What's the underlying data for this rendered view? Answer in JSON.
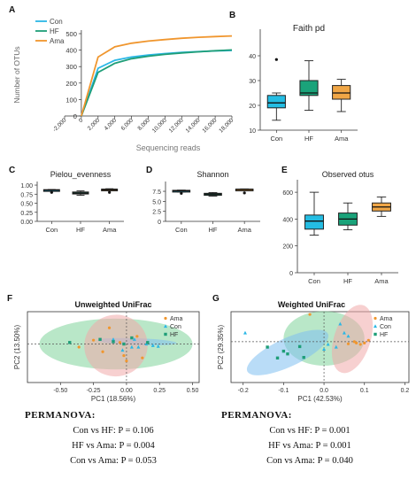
{
  "colors": {
    "con": "#2ab7e6",
    "hf": "#1f9e78",
    "ama": "#f0962e",
    "box_con": "#24bde3",
    "box_hf": "#1aa37a",
    "box_ama": "#f0a646",
    "ellipse_green": "#7fd39a",
    "ellipse_blue": "#7fbff0",
    "ellipse_pink": "#f0a9a9"
  },
  "chart_data": [
    {
      "panel": "A",
      "type": "line",
      "title": "",
      "xlabel": "Sequencing reads",
      "ylabel": "Number of OTUs",
      "xlim": [
        -2000,
        18000
      ],
      "ylim": [
        0,
        500
      ],
      "x_ticks": [
        "-2,000",
        "0",
        "2,000",
        "4,000",
        "6,000",
        "8,000",
        "10,000",
        "12,000",
        "14,000",
        "16,000",
        "18,000"
      ],
      "y_ticks": [
        "0",
        "100",
        "200",
        "300",
        "400",
        "500"
      ],
      "legend": "top-left",
      "x": [
        0,
        2000,
        4000,
        6000,
        8000,
        10000,
        12000,
        14000,
        16000,
        18000
      ],
      "series": [
        {
          "name": "Con",
          "values": [
            0,
            290,
            338,
            358,
            370,
            379,
            386,
            391,
            395,
            398
          ]
        },
        {
          "name": "HF",
          "values": [
            0,
            265,
            320,
            348,
            363,
            374,
            383,
            390,
            396,
            401
          ]
        },
        {
          "name": "Ama",
          "values": [
            0,
            358,
            420,
            442,
            455,
            464,
            472,
            478,
            482,
            486
          ]
        }
      ]
    },
    {
      "panel": "B",
      "type": "box",
      "title": "Faith pd",
      "categories": [
        "Con",
        "HF",
        "Ama"
      ],
      "y_ticks": [
        "10",
        "20",
        "30",
        "40"
      ],
      "ylim": [
        10,
        50
      ],
      "boxes": [
        {
          "min": 14,
          "q1": 19,
          "median": 21,
          "q3": 24,
          "max": 25,
          "outliers": [
            38.5
          ]
        },
        {
          "min": 18,
          "q1": 24,
          "median": 25,
          "q3": 30,
          "max": 38,
          "outliers": []
        },
        {
          "min": 17.5,
          "q1": 22.5,
          "median": 25,
          "q3": 28,
          "max": 30.5,
          "outliers": []
        }
      ]
    },
    {
      "panel": "C",
      "type": "box",
      "title": "Pielou_evenness",
      "categories": [
        "Con",
        "HF",
        "Ama"
      ],
      "y_ticks": [
        "0.00",
        "0.25",
        "0.50",
        "0.75",
        "1.00"
      ],
      "ylim": [
        0,
        1.05
      ],
      "boxes": [
        {
          "min": 0.83,
          "q1": 0.845,
          "median": 0.86,
          "q3": 0.875,
          "max": 0.88,
          "outliers": [
            0.8
          ]
        },
        {
          "min": 0.72,
          "q1": 0.755,
          "median": 0.78,
          "q3": 0.81,
          "max": 0.84,
          "outliers": []
        },
        {
          "min": 0.85,
          "q1": 0.86,
          "median": 0.875,
          "q3": 0.89,
          "max": 0.9,
          "outliers": [
            0.8
          ]
        }
      ]
    },
    {
      "panel": "D",
      "type": "box",
      "title": "Shannon",
      "categories": [
        "Con",
        "HF",
        "Ama"
      ],
      "y_ticks": [
        "0",
        "2.5",
        "5.0",
        "7.5"
      ],
      "ylim": [
        0,
        9.5
      ],
      "boxes": [
        {
          "min": 7.3,
          "q1": 7.4,
          "median": 7.6,
          "q3": 7.75,
          "max": 7.8,
          "outliers": [
            7.0
          ]
        },
        {
          "min": 6.3,
          "q1": 6.5,
          "median": 6.8,
          "q3": 7.0,
          "max": 7.2,
          "outliers": []
        },
        {
          "min": 7.75,
          "q1": 7.85,
          "median": 7.95,
          "q3": 8.05,
          "max": 8.1,
          "outliers": [
            7.1
          ]
        }
      ]
    },
    {
      "panel": "E",
      "type": "box",
      "title": "Observed otus",
      "categories": [
        "Con",
        "HF",
        "Ama"
      ],
      "y_ticks": [
        "0",
        "200",
        "400",
        "600"
      ],
      "ylim": [
        0,
        680
      ],
      "boxes": [
        {
          "min": 280,
          "q1": 325,
          "median": 385,
          "q3": 430,
          "max": 600,
          "outliers": []
        },
        {
          "min": 320,
          "q1": 355,
          "median": 400,
          "q3": 445,
          "max": 520,
          "outliers": []
        },
        {
          "min": 420,
          "q1": 460,
          "median": 490,
          "q3": 520,
          "max": 565,
          "outliers": []
        }
      ]
    },
    {
      "panel": "F",
      "type": "scatter",
      "title": "Unweighted UniFrac",
      "xlabel": "PC1 (18.56%)",
      "ylabel": "PC2 (13.50%)",
      "xlim": [
        -0.75,
        0.55
      ],
      "ylim": [
        -0.5,
        0.42
      ],
      "x_ticks": [
        "-0.50",
        "-0.25",
        "0.00",
        "0.25",
        "0.50"
      ],
      "legend": "top-right",
      "series": [
        {
          "name": "Ama",
          "points": [
            [
              -0.13,
              0.21
            ],
            [
              -0.25,
              0.05
            ],
            [
              -0.36,
              -0.04
            ],
            [
              -0.02,
              -0.15
            ],
            [
              0.12,
              -0.18
            ],
            [
              -0.05,
              0.02
            ],
            [
              0.08,
              0.1
            ],
            [
              0.0,
              -0.22
            ],
            [
              -0.18,
              -0.1
            ]
          ]
        },
        {
          "name": "Con",
          "points": [
            [
              -0.1,
              0.06
            ],
            [
              0.06,
              0.06
            ],
            [
              0.15,
              0.0
            ],
            [
              0.2,
              -0.02
            ],
            [
              0.24,
              -0.03
            ],
            [
              0.09,
              -0.04
            ],
            [
              -0.03,
              -0.08
            ],
            [
              0.04,
              -0.04
            ]
          ]
        },
        {
          "name": "HF",
          "points": [
            [
              -0.2,
              0.06
            ],
            [
              -0.1,
              0.03
            ],
            [
              0.04,
              0.08
            ],
            [
              0.16,
              0.02
            ],
            [
              -0.43,
              0.02
            ],
            [
              -0.02,
              0.0
            ]
          ]
        }
      ],
      "ellipses": [
        {
          "group": "Con",
          "cx": -0.08,
          "cy": 0.0,
          "rx": 0.58,
          "ry": 0.33,
          "angle": 0
        },
        {
          "group": "HF",
          "cx": 0.08,
          "cy": 0.03,
          "rx": 0.3,
          "ry": 0.045,
          "angle": 2
        },
        {
          "group": "Ama",
          "cx": -0.08,
          "cy": -0.02,
          "rx": 0.24,
          "ry": 0.4,
          "angle": -12
        }
      ]
    },
    {
      "panel": "G",
      "type": "scatter",
      "title": "Weighted UniFrac",
      "xlabel": "PC1 (42.53%)",
      "ylabel": "PC2 (29.35%)",
      "xlim": [
        -0.23,
        0.21
      ],
      "ylim": [
        -0.15,
        0.11
      ],
      "x_ticks": [
        "-0.2",
        "-0.1",
        "0.0",
        "0.1",
        "0.2"
      ],
      "legend": "top-right",
      "series": [
        {
          "name": "Ama",
          "points": [
            [
              -0.035,
              0.1
            ],
            [
              0.075,
              0.0
            ],
            [
              0.08,
              -0.005
            ],
            [
              0.09,
              -0.01
            ],
            [
              0.1,
              -0.005
            ],
            [
              0.06,
              -0.008
            ],
            [
              0.11,
              0.005
            ]
          ]
        },
        {
          "name": "Con",
          "points": [
            [
              -0.195,
              0.032
            ],
            [
              0.04,
              0.065
            ],
            [
              0.05,
              0.032
            ],
            [
              0.03,
              -0.02
            ],
            [
              0.0,
              -0.028
            ],
            [
              0.06,
              0.02
            ],
            [
              0.01,
              -0.01
            ]
          ]
        },
        {
          "name": "HF",
          "points": [
            [
              -0.14,
              -0.02
            ],
            [
              -0.115,
              -0.06
            ],
            [
              -0.09,
              -0.045
            ],
            [
              -0.06,
              -0.018
            ],
            [
              -0.05,
              -0.058
            ],
            [
              -0.1,
              -0.035
            ]
          ]
        }
      ],
      "ellipses": [
        {
          "group": "Con",
          "cx": 0.0,
          "cy": 0.012,
          "rx": 0.1,
          "ry": 0.1,
          "angle": 0
        },
        {
          "group": "HF",
          "cx": -0.09,
          "cy": -0.04,
          "rx": 0.11,
          "ry": 0.052,
          "angle": -25
        },
        {
          "group": "Ama",
          "cx": 0.07,
          "cy": 0.01,
          "rx": 0.045,
          "ry": 0.13,
          "angle": 18
        }
      ]
    }
  ],
  "legend_labels": {
    "con": "Con",
    "hf": "HF",
    "ama": "Ama"
  },
  "permanova_f": {
    "heading": "PERMANOVA:",
    "lines": [
      "Con vs HF: P = 0.106",
      "HF vs Ama: P = 0.004",
      "Con vs Ama: P = 0.053"
    ]
  },
  "permanova_g": {
    "heading": "PERMANOVA:",
    "lines": [
      "Con vs HF: P = 0.001",
      "HF vs Ama: P = 0.001",
      "Con vs Ama: P = 0.040"
    ]
  }
}
